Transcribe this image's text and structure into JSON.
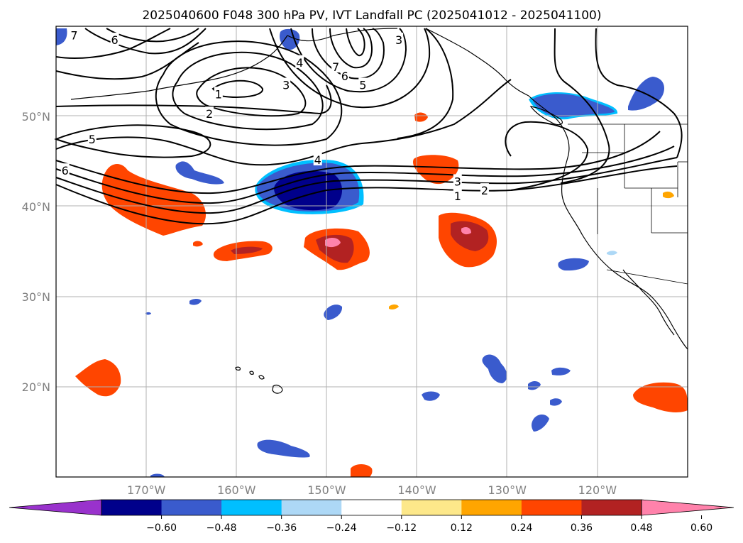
{
  "title": "2025040600 F048 300 hPa PV, IVT Landfall PC (2025041012 - 2025041100)",
  "map": {
    "lon_range": [
      -180,
      -110
    ],
    "lat_range": [
      10,
      60
    ],
    "lat_gridlines": [
      {
        "value": 50,
        "label": "50°N"
      },
      {
        "value": 40,
        "label": "40°N"
      },
      {
        "value": 30,
        "label": "30°N"
      },
      {
        "value": 20,
        "label": "20°N"
      }
    ],
    "lon_gridlines": [
      {
        "value": -170,
        "label": "170°W"
      },
      {
        "value": -160,
        "label": "160°W"
      },
      {
        "value": -150,
        "label": "150°W"
      },
      {
        "value": -140,
        "label": "140°W"
      },
      {
        "value": -130,
        "label": "130°W"
      },
      {
        "value": -120,
        "label": "120°W"
      }
    ],
    "contour_labels": [
      {
        "text": "7",
        "lon": -178,
        "lat": 59
      },
      {
        "text": "6",
        "lon": -173.5,
        "lat": 58.5
      },
      {
        "text": "6",
        "lon": -148,
        "lat": 54.5
      },
      {
        "text": "5",
        "lon": -146,
        "lat": 53.5
      },
      {
        "text": "4",
        "lon": -153,
        "lat": 56
      },
      {
        "text": "3",
        "lon": -154.5,
        "lat": 53.5
      },
      {
        "text": "3",
        "lon": -142,
        "lat": 58.5
      },
      {
        "text": "7",
        "lon": -149,
        "lat": 55.5
      },
      {
        "text": "1",
        "lon": -162,
        "lat": 52.5
      },
      {
        "text": "2",
        "lon": -163,
        "lat": 50.3
      },
      {
        "text": "5",
        "lon": -176,
        "lat": 47.5
      },
      {
        "text": "6",
        "lon": -179,
        "lat": 44
      },
      {
        "text": "4",
        "lon": -151,
        "lat": 45.2
      },
      {
        "text": "3",
        "lon": -135.5,
        "lat": 42.8
      },
      {
        "text": "2",
        "lon": -132.5,
        "lat": 41.8
      },
      {
        "text": "1",
        "lon": -135.5,
        "lat": 41.2
      }
    ]
  },
  "colorbar": {
    "ticks": [
      "−0.60",
      "−0.48",
      "−0.36",
      "−0.24",
      "−0.12",
      "0.12",
      "0.24",
      "0.36",
      "0.48",
      "0.60"
    ],
    "colors": [
      "#9932cc",
      "#00008b",
      "#3a5bcd",
      "#00bfff",
      "#add8f6",
      "#ffffff",
      "#fde88a",
      "#ffa500",
      "#ff4500",
      "#b22222",
      "#ff82ab"
    ]
  },
  "colors": {
    "gridline": "#b0b0b0",
    "coastline": "#000000",
    "contour": "#000000"
  }
}
